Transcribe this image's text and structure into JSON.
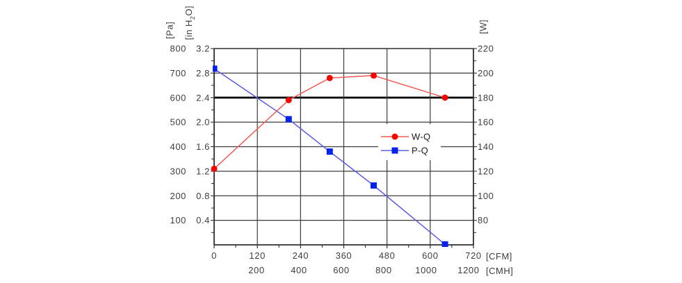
{
  "chart_data": {
    "type": "line",
    "title": "",
    "x_axis": {
      "primary": {
        "label": "[CFM]",
        "ticks": [
          0,
          120,
          240,
          360,
          480,
          600,
          720
        ],
        "range": [
          0,
          720
        ],
        "minor_step": 60
      },
      "secondary": {
        "label": "[CMH]",
        "ticks": [
          200,
          400,
          600,
          800,
          1000,
          1200
        ],
        "cfm_per_cmh": 0.58858
      }
    },
    "y_axes": {
      "left_pa": {
        "label": "[Pa]",
        "ticks": [
          100,
          200,
          300,
          400,
          500,
          600,
          700,
          800
        ],
        "range": [
          0,
          800
        ],
        "minor_step": 50
      },
      "left_inh2o": {
        "label": "[in H2O]",
        "label_parts": {
          "pre": "[in H",
          "sub": "2",
          "post": "O]"
        },
        "ticks": [
          0.4,
          0.8,
          1.2,
          1.6,
          2.0,
          2.4,
          2.8,
          3.2
        ],
        "range": [
          0,
          3.2
        ],
        "minor_step": 0.2
      },
      "right_w": {
        "label": "[W]",
        "ticks": [
          80,
          100,
          120,
          140,
          160,
          180,
          200,
          220
        ],
        "range": [
          60,
          220
        ],
        "minor_step": 10
      }
    },
    "grid": "on",
    "reference_line": {
      "value_pa": 600,
      "value_inh2o": 2.4,
      "value_w": 180,
      "color": "#000000"
    },
    "series": [
      {
        "name": "W-Q",
        "axis": "right_w",
        "marker": "circle",
        "marker_color": "#f10800",
        "line_color": "#f25a55",
        "x_cfm": [
          0,
          207,
          321,
          443,
          641
        ],
        "values_w": [
          122,
          178,
          196,
          198,
          180
        ]
      },
      {
        "name": "P-Q",
        "axis": "left_pa",
        "marker": "square",
        "marker_color": "#0522ec",
        "line_color": "#5a5ae2",
        "x_cfm": [
          0,
          207,
          321,
          443,
          641
        ],
        "values_pa": [
          718,
          512,
          380,
          242,
          2
        ]
      }
    ],
    "legend": {
      "position": "inside-right",
      "entries": [
        "W-Q",
        "P-Q"
      ]
    },
    "colors": {
      "grid": "#3b3b3b",
      "frame": "#2e2e2e",
      "tick": "#2e2e2e",
      "background": "#ffffff",
      "tick_text": "#3d3d3d"
    }
  }
}
